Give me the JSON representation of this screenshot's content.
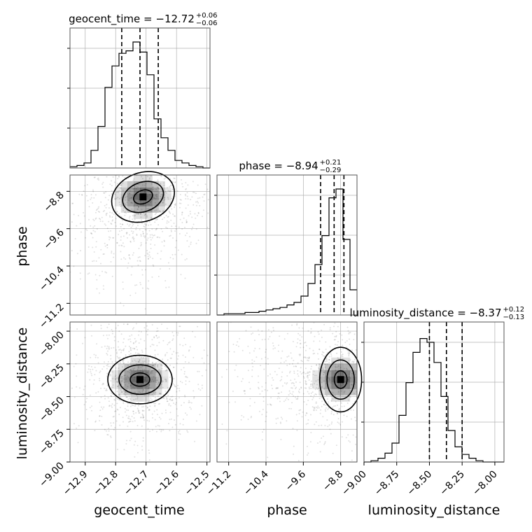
{
  "chart_data": {
    "type": "corner",
    "parameters": [
      "geocent_time",
      "phase",
      "luminosity_distance"
    ],
    "ranges": {
      "geocent_time": [
        -12.95,
        -12.49
      ],
      "phase": [
        -11.45,
        -8.45
      ],
      "luminosity_distance": [
        -9.0,
        -7.93
      ]
    },
    "ticks": {
      "geocent_time": [
        -12.9,
        -12.8,
        -12.7,
        -12.6,
        -12.5
      ],
      "phase": [
        -11.2,
        -10.4,
        -9.6,
        -8.8
      ],
      "luminosity_distance": [
        -9.0,
        -8.75,
        -8.5,
        -8.25,
        -8.0
      ]
    },
    "tick_labels": {
      "geocent_time": [
        "−12.9",
        "−12.8",
        "−12.7",
        "−12.6",
        "−12.5"
      ],
      "phase": [
        "−11.2",
        "−10.4",
        "−9.6",
        "−8.8"
      ],
      "luminosity_distance": [
        "−9.00",
        "−8.75",
        "−8.50",
        "−8.25",
        "−8.00"
      ]
    },
    "titles": [
      {
        "param": "geocent_time",
        "name": "geocent_time",
        "median": "−12.72",
        "plus": "+0.06",
        "minus": "−0.06"
      },
      {
        "param": "phase",
        "name": "phase",
        "median": "−8.94",
        "plus": "+0.21",
        "minus": "−0.29"
      },
      {
        "param": "luminosity_distance",
        "name": "luminosity_distance",
        "median": "−8.37",
        "plus": "+0.12",
        "minus": "−0.13"
      }
    ],
    "quantiles": {
      "geocent_time": [
        -12.78,
        -12.72,
        -12.66
      ],
      "phase": [
        -9.23,
        -8.94,
        -8.73
      ],
      "luminosity_distance": [
        -8.5,
        -8.37,
        -8.25
      ]
    },
    "histograms": {
      "geocent_time": {
        "edges_start": -12.95,
        "bin_width": 0.023,
        "heights": [
          0.01,
          0.02,
          0.04,
          0.14,
          0.33,
          0.64,
          0.81,
          0.91,
          0.93,
          1.0,
          0.92,
          0.74,
          0.39,
          0.24,
          0.14,
          0.06,
          0.04,
          0.02,
          0.01,
          0.0
        ]
      },
      "phase": {
        "edges_start": -11.45,
        "bin_width": 0.15,
        "heights": [
          0.0,
          0.01,
          0.01,
          0.01,
          0.02,
          0.02,
          0.03,
          0.04,
          0.05,
          0.06,
          0.08,
          0.1,
          0.15,
          0.25,
          0.4,
          0.63,
          0.93,
          1.0,
          0.6,
          0.2
        ]
      },
      "luminosity_distance": {
        "edges_start": -9.0,
        "bin_width": 0.0535,
        "heights": [
          0.0,
          0.01,
          0.03,
          0.07,
          0.15,
          0.37,
          0.63,
          0.87,
          0.98,
          0.95,
          0.79,
          0.52,
          0.25,
          0.12,
          0.06,
          0.03,
          0.01,
          0.0,
          0.0,
          0.0
        ]
      }
    },
    "pairs": [
      {
        "x": "geocent_time",
        "y": "phase",
        "peak": [
          -12.71,
          -8.92
        ]
      },
      {
        "x": "geocent_time",
        "y": "luminosity_distance",
        "peak": [
          -12.72,
          -8.37
        ]
      },
      {
        "x": "phase",
        "y": "luminosity_distance",
        "peak": [
          -8.8,
          -8.37
        ]
      }
    ],
    "axis_labels": {
      "geocent_time": "geocent_time",
      "phase": "phase",
      "luminosity_distance": "luminosity_distance"
    },
    "grid": true,
    "colors": {
      "line": "#000000",
      "grid": "#b0b0b0",
      "points": "#000000"
    }
  }
}
